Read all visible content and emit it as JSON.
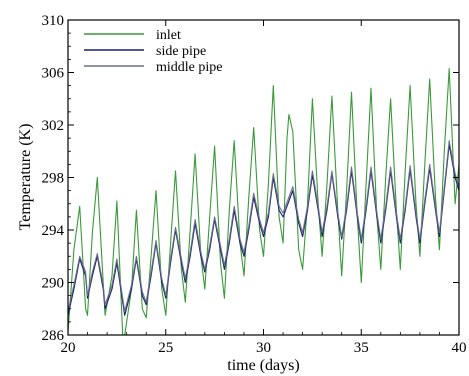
{
  "chart_data": {
    "type": "line",
    "title": "",
    "xlabel": "time (days)",
    "ylabel": "Temperature (K)",
    "xlim": [
      20,
      40
    ],
    "ylim": [
      286,
      310
    ],
    "xticks": [
      20,
      25,
      30,
      35,
      40
    ],
    "yticks": [
      286,
      290,
      294,
      298,
      302,
      306,
      310
    ],
    "grid": false,
    "legend_position": "top-left",
    "series": [
      {
        "name": "inlet",
        "color": "#3a9a3a",
        "x": [
          20.0,
          20.3,
          20.6,
          20.9,
          21.0,
          21.25,
          21.5,
          21.8,
          21.9,
          22.25,
          22.5,
          22.8,
          22.9,
          23.25,
          23.5,
          23.8,
          24.0,
          24.25,
          24.5,
          24.8,
          25.0,
          25.25,
          25.5,
          25.8,
          26.0,
          26.25,
          26.5,
          26.8,
          27.0,
          27.25,
          27.5,
          27.8,
          28.0,
          28.25,
          28.5,
          28.8,
          29.0,
          29.25,
          29.5,
          29.8,
          30.0,
          30.25,
          30.5,
          30.8,
          31.0,
          31.2,
          31.3,
          31.5,
          31.8,
          32.0,
          32.25,
          32.5,
          32.8,
          33.0,
          33.25,
          33.5,
          33.8,
          34.0,
          34.25,
          34.5,
          34.8,
          35.0,
          35.25,
          35.5,
          35.8,
          36.0,
          36.25,
          36.5,
          36.8,
          37.0,
          37.25,
          37.5,
          37.8,
          38.0,
          38.25,
          38.5,
          38.8,
          39.0,
          39.25,
          39.5,
          39.8,
          40.0
        ],
        "y": [
          286.2,
          292.5,
          295.8,
          288.0,
          287.5,
          293.8,
          298.0,
          290.0,
          287.5,
          290.5,
          296.2,
          286.0,
          285.8,
          289.5,
          295.5,
          288.0,
          287.3,
          292.0,
          297.0,
          289.5,
          287.5,
          293.0,
          298.5,
          291.0,
          288.5,
          294.0,
          299.8,
          292.0,
          289.5,
          295.0,
          300.4,
          291.5,
          288.8,
          295.5,
          300.8,
          293.0,
          290.5,
          296.5,
          301.8,
          294.0,
          292.0,
          297.5,
          305.0,
          295.0,
          293.0,
          301.0,
          302.8,
          301.5,
          292.5,
          291.0,
          296.0,
          304.0,
          296.0,
          292.0,
          297.5,
          304.2,
          295.5,
          290.5,
          297.0,
          304.5,
          295.0,
          290.0,
          297.5,
          304.8,
          295.0,
          291.0,
          298.0,
          304.0,
          295.5,
          291.0,
          298.5,
          305.0,
          296.0,
          292.0,
          299.0,
          305.5,
          296.5,
          292.5,
          300.0,
          306.3,
          296.0,
          299.0
        ]
      },
      {
        "name": "side pipe",
        "color": "#1a1f6e",
        "x": [
          20.0,
          20.3,
          20.6,
          20.9,
          21.0,
          21.25,
          21.5,
          21.8,
          21.9,
          22.25,
          22.5,
          22.8,
          22.9,
          23.25,
          23.5,
          23.8,
          24.0,
          24.25,
          24.5,
          24.8,
          25.0,
          25.25,
          25.5,
          25.8,
          26.0,
          26.25,
          26.5,
          26.8,
          27.0,
          27.25,
          27.5,
          27.8,
          28.0,
          28.25,
          28.5,
          28.8,
          29.0,
          29.25,
          29.5,
          29.8,
          30.0,
          30.25,
          30.5,
          30.8,
          31.0,
          31.25,
          31.5,
          31.8,
          32.0,
          32.25,
          32.5,
          32.8,
          33.0,
          33.25,
          33.5,
          33.8,
          34.0,
          34.25,
          34.5,
          34.8,
          35.0,
          35.25,
          35.5,
          35.8,
          36.0,
          36.25,
          36.5,
          36.8,
          37.0,
          37.25,
          37.5,
          37.8,
          38.0,
          38.25,
          38.5,
          38.8,
          39.0,
          39.25,
          39.5,
          39.8,
          40.0
        ],
        "y": [
          287.5,
          289.5,
          291.8,
          290.5,
          288.8,
          290.5,
          292.0,
          289.5,
          288.0,
          289.5,
          291.5,
          288.5,
          287.5,
          289.5,
          291.8,
          289.0,
          288.3,
          290.5,
          293.0,
          290.0,
          288.8,
          291.5,
          294.0,
          291.5,
          290.0,
          292.0,
          294.5,
          292.0,
          290.8,
          292.5,
          294.8,
          292.5,
          291.0,
          293.0,
          295.5,
          293.0,
          292.0,
          294.0,
          296.5,
          294.5,
          293.5,
          295.0,
          298.0,
          295.5,
          295.0,
          296.0,
          297.0,
          294.5,
          293.5,
          295.5,
          298.2,
          295.5,
          293.5,
          295.5,
          298.3,
          295.0,
          293.3,
          295.5,
          298.5,
          295.0,
          293.0,
          295.5,
          298.5,
          295.0,
          293.0,
          295.5,
          298.5,
          295.0,
          293.0,
          295.5,
          298.6,
          295.0,
          293.0,
          296.0,
          298.7,
          295.5,
          293.5,
          297.0,
          300.5,
          298.0,
          297.0
        ]
      },
      {
        "name": "middle pipe",
        "color": "#6b6f8a",
        "x": [
          20.0,
          20.3,
          20.6,
          20.9,
          21.0,
          21.25,
          21.5,
          21.8,
          21.9,
          22.25,
          22.5,
          22.8,
          22.9,
          23.25,
          23.5,
          23.8,
          24.0,
          24.25,
          24.5,
          24.8,
          25.0,
          25.25,
          25.5,
          25.8,
          26.0,
          26.25,
          26.5,
          26.8,
          27.0,
          27.25,
          27.5,
          27.8,
          28.0,
          28.25,
          28.5,
          28.8,
          29.0,
          29.25,
          29.5,
          29.8,
          30.0,
          30.25,
          30.5,
          30.8,
          31.0,
          31.25,
          31.5,
          31.8,
          32.0,
          32.25,
          32.5,
          32.8,
          33.0,
          33.25,
          33.5,
          33.8,
          34.0,
          34.25,
          34.5,
          34.8,
          35.0,
          35.25,
          35.5,
          35.8,
          36.0,
          36.25,
          36.5,
          36.8,
          37.0,
          37.25,
          37.5,
          37.8,
          38.0,
          38.25,
          38.5,
          38.8,
          39.0,
          39.25,
          39.5,
          39.8,
          40.0
        ],
        "y": [
          287.8,
          289.8,
          292.0,
          290.8,
          289.0,
          290.8,
          292.2,
          289.8,
          288.3,
          289.8,
          291.8,
          288.8,
          287.8,
          289.8,
          292.0,
          289.3,
          288.5,
          290.8,
          293.2,
          290.3,
          289.0,
          291.8,
          294.2,
          291.8,
          290.3,
          292.3,
          294.8,
          292.3,
          291.0,
          292.8,
          295.0,
          292.8,
          291.3,
          293.3,
          295.8,
          293.3,
          292.3,
          294.3,
          296.8,
          294.8,
          293.8,
          295.3,
          298.3,
          295.8,
          295.3,
          296.3,
          297.3,
          294.8,
          293.8,
          295.8,
          298.5,
          295.8,
          293.8,
          295.8,
          298.5,
          295.3,
          293.5,
          295.8,
          298.8,
          295.3,
          293.3,
          295.8,
          298.8,
          295.3,
          293.3,
          295.8,
          298.8,
          295.3,
          293.3,
          295.8,
          298.9,
          295.3,
          293.3,
          296.3,
          299.0,
          295.8,
          293.8,
          297.3,
          300.8,
          298.3,
          297.3
        ]
      }
    ]
  }
}
